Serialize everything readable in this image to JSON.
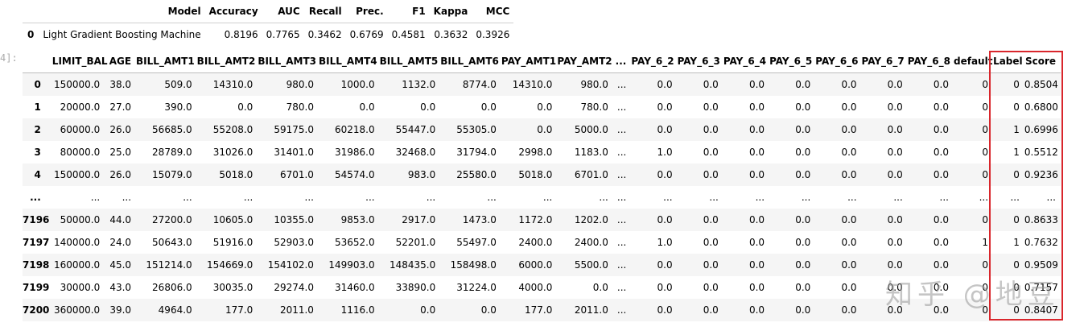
{
  "metrics": {
    "columns": [
      "",
      "Model",
      "Accuracy",
      "AUC",
      "Recall",
      "Prec.",
      "F1",
      "Kappa",
      "MCC"
    ],
    "rows": [
      [
        "0",
        "Light Gradient Boosting Machine",
        "0.8196",
        "0.7765",
        "0.3462",
        "0.6769",
        "0.4581",
        "0.3632",
        "0.3926"
      ]
    ]
  },
  "prompt_label": "4]:",
  "dataframe": {
    "columns": [
      "",
      "LIMIT_BAL",
      "AGE",
      "BILL_AMT1",
      "BILL_AMT2",
      "BILL_AMT3",
      "BILL_AMT4",
      "BILL_AMT5",
      "BILL_AMT6",
      "PAY_AMT1",
      "PAY_AMT2",
      "...",
      "PAY_6_2",
      "PAY_6_3",
      "PAY_6_4",
      "PAY_6_5",
      "PAY_6_6",
      "PAY_6_7",
      "PAY_6_8",
      "default",
      "Label",
      "Score"
    ],
    "rows": [
      [
        "0",
        "150000.0",
        "38.0",
        "509.0",
        "14310.0",
        "980.0",
        "1000.0",
        "1132.0",
        "8774.0",
        "14310.0",
        "980.0",
        "...",
        "0.0",
        "0.0",
        "0.0",
        "0.0",
        "0.0",
        "0.0",
        "0.0",
        "0",
        "0",
        "0.8504"
      ],
      [
        "1",
        "20000.0",
        "27.0",
        "390.0",
        "0.0",
        "780.0",
        "0.0",
        "0.0",
        "0.0",
        "0.0",
        "780.0",
        "...",
        "0.0",
        "0.0",
        "0.0",
        "0.0",
        "0.0",
        "0.0",
        "0.0",
        "0",
        "0",
        "0.6800"
      ],
      [
        "2",
        "60000.0",
        "26.0",
        "56685.0",
        "55208.0",
        "59175.0",
        "60218.0",
        "55447.0",
        "55305.0",
        "0.0",
        "5000.0",
        "...",
        "0.0",
        "0.0",
        "0.0",
        "0.0",
        "0.0",
        "0.0",
        "0.0",
        "0",
        "1",
        "0.6996"
      ],
      [
        "3",
        "80000.0",
        "25.0",
        "28789.0",
        "31026.0",
        "31401.0",
        "31986.0",
        "32468.0",
        "31794.0",
        "2998.0",
        "1183.0",
        "...",
        "1.0",
        "0.0",
        "0.0",
        "0.0",
        "0.0",
        "0.0",
        "0.0",
        "0",
        "1",
        "0.5512"
      ],
      [
        "4",
        "150000.0",
        "26.0",
        "15079.0",
        "5018.0",
        "6701.0",
        "54574.0",
        "983.0",
        "25580.0",
        "5018.0",
        "6701.0",
        "...",
        "0.0",
        "0.0",
        "0.0",
        "0.0",
        "0.0",
        "0.0",
        "0.0",
        "0",
        "0",
        "0.9236"
      ],
      [
        "...",
        "...",
        "...",
        "...",
        "...",
        "...",
        "...",
        "...",
        "...",
        "...",
        "...",
        "...",
        "...",
        "...",
        "...",
        "...",
        "...",
        "...",
        "...",
        "...",
        "...",
        "..."
      ],
      [
        "7196",
        "50000.0",
        "44.0",
        "27200.0",
        "10605.0",
        "10355.0",
        "9853.0",
        "2917.0",
        "1473.0",
        "1172.0",
        "1202.0",
        "...",
        "0.0",
        "0.0",
        "0.0",
        "0.0",
        "0.0",
        "0.0",
        "0.0",
        "0",
        "0",
        "0.8633"
      ],
      [
        "7197",
        "140000.0",
        "24.0",
        "50643.0",
        "51916.0",
        "52903.0",
        "53652.0",
        "52201.0",
        "55497.0",
        "2400.0",
        "2400.0",
        "...",
        "1.0",
        "0.0",
        "0.0",
        "0.0",
        "0.0",
        "0.0",
        "0.0",
        "1",
        "1",
        "0.7632"
      ],
      [
        "7198",
        "160000.0",
        "45.0",
        "151214.0",
        "154669.0",
        "154102.0",
        "149903.0",
        "148435.0",
        "158498.0",
        "6000.0",
        "5500.0",
        "...",
        "0.0",
        "0.0",
        "0.0",
        "0.0",
        "0.0",
        "0.0",
        "0.0",
        "0",
        "0",
        "0.9509"
      ],
      [
        "7199",
        "30000.0",
        "43.0",
        "26806.0",
        "30035.0",
        "29274.0",
        "31460.0",
        "33890.0",
        "31224.0",
        "4000.0",
        "0.0",
        "...",
        "0.0",
        "0.0",
        "0.0",
        "0.0",
        "0.0",
        "0.0",
        "0.0",
        "0",
        "0",
        "0.7157"
      ],
      [
        "7200",
        "360000.0",
        "39.0",
        "4964.0",
        "177.0",
        "2011.0",
        "1116.0",
        "0.0",
        "0.0",
        "177.0",
        "2011.0",
        "...",
        "0.0",
        "0.0",
        "0.0",
        "0.0",
        "0.0",
        "0.0",
        "0.0",
        "0",
        "0",
        "0.8407"
      ]
    ]
  },
  "highlight_color": "#d9262c",
  "watermark_text": "知乎 @地豆"
}
